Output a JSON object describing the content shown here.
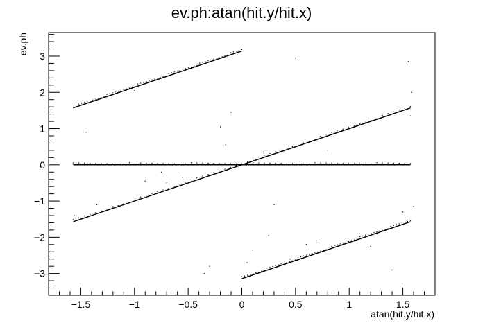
{
  "chart_data": {
    "type": "scatter",
    "title": "ev.ph:atan(hit.y/hit.x)",
    "xlabel": "atan(hit.y/hit.x)",
    "ylabel": "ev.ph",
    "xlim": [
      -1.8,
      1.8
    ],
    "ylim": [
      -3.6,
      3.65
    ],
    "x_ticks": [
      -1.5,
      -1,
      -0.5,
      0,
      0.5,
      1,
      1.5
    ],
    "x_tick_labels": [
      "−1.5",
      "−1",
      "−0.5",
      "0",
      "0.5",
      "1",
      "1.5"
    ],
    "y_ticks": [
      -3,
      -2,
      -1,
      0,
      1,
      2,
      3
    ],
    "y_tick_labels": [
      "−3",
      "−2",
      "−1",
      "0",
      "1",
      "2",
      "3"
    ],
    "grid": false,
    "legend": "none",
    "marker_color": "#000000",
    "series": [
      {
        "values": [
          {
            "x": -1.5708,
            "y": 1.5708
          },
          {
            "x": 0,
            "y": 3.1416
          }
        ]
      },
      {
        "values": [
          {
            "x": -1.5708,
            "y": -1.5708
          },
          {
            "x": 1.5708,
            "y": 1.5708
          }
        ]
      },
      {
        "values": [
          {
            "x": -1.5708,
            "y": 0
          },
          {
            "x": 1.5708,
            "y": 0
          }
        ]
      },
      {
        "values": [
          {
            "x": 0,
            "y": -3.1416
          },
          {
            "x": 1.5708,
            "y": -1.5708
          }
        ]
      }
    ],
    "scatter_outliers": [
      {
        "x": -1.45,
        "y": 0.9
      },
      {
        "x": -1.35,
        "y": -1.1
      },
      {
        "x": -1.2,
        "y": -1.15
      },
      {
        "x": -0.9,
        "y": -0.45
      },
      {
        "x": -0.75,
        "y": -0.2
      },
      {
        "x": -0.7,
        "y": -0.5
      },
      {
        "x": -0.6,
        "y": 0.0
      },
      {
        "x": -0.55,
        "y": -0.35
      },
      {
        "x": -0.35,
        "y": -3.0
      },
      {
        "x": -0.3,
        "y": -2.8
      },
      {
        "x": -0.2,
        "y": 1.05
      },
      {
        "x": -0.15,
        "y": 0.55
      },
      {
        "x": -0.1,
        "y": 1.45
      },
      {
        "x": 0.05,
        "y": -2.7
      },
      {
        "x": 0.1,
        "y": -2.35
      },
      {
        "x": 0.2,
        "y": 0.35
      },
      {
        "x": 0.25,
        "y": -1.95
      },
      {
        "x": 0.3,
        "y": -1.1
      },
      {
        "x": 0.45,
        "y": -2.6
      },
      {
        "x": 0.5,
        "y": 2.95
      },
      {
        "x": 0.6,
        "y": -2.2
      },
      {
        "x": 0.7,
        "y": -2.1
      },
      {
        "x": 0.8,
        "y": 0.4
      },
      {
        "x": 1.2,
        "y": -2.25
      },
      {
        "x": 1.4,
        "y": -2.9
      },
      {
        "x": 1.5,
        "y": -1.3
      },
      {
        "x": 1.55,
        "y": 2.85
      },
      {
        "x": 1.58,
        "y": 2.0
      },
      {
        "x": 1.6,
        "y": -1.15
      },
      {
        "x": -1.56,
        "y": -1.4
      },
      {
        "x": 1.57,
        "y": 1.35
      },
      {
        "x": -1.0,
        "y": 2.05
      },
      {
        "x": -0.45,
        "y": 2.7
      }
    ]
  }
}
